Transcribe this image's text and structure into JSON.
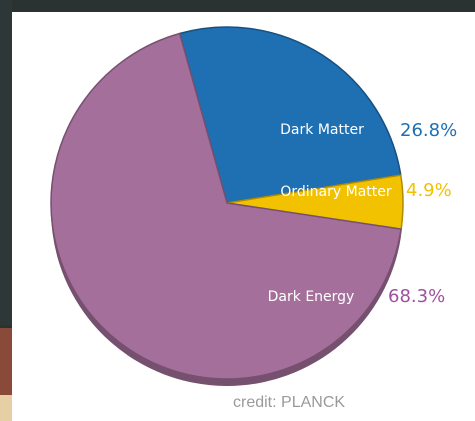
{
  "chart_data": {
    "type": "pie",
    "slices": [
      {
        "label": "Dark Matter",
        "value": 26.8,
        "value_label": "26.8%",
        "color": "#1f6fb3",
        "label_color": "#1f6fb3"
      },
      {
        "label": "Ordinary Matter",
        "value": 4.9,
        "value_label": "4.9%",
        "color": "#f2c200",
        "label_color": "#f2c200"
      },
      {
        "label": "Dark Energy",
        "value": 68.3,
        "value_label": "68.3%",
        "color": "#a46f9a",
        "label_color": "#a050a0"
      }
    ]
  },
  "credit": "credit: PLANCK"
}
